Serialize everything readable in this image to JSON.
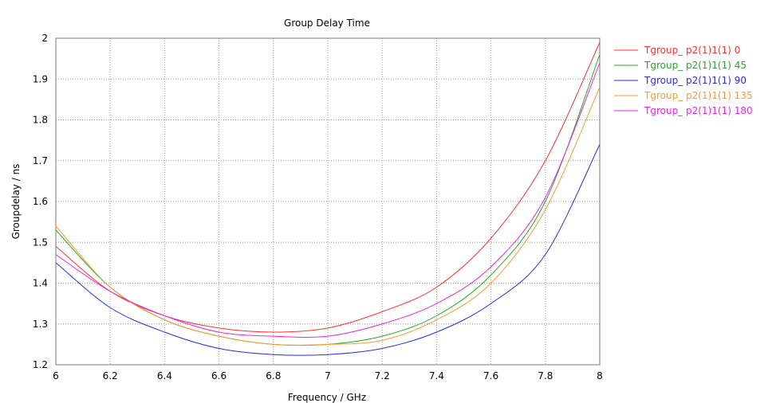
{
  "chart_data": {
    "type": "line",
    "title": "Group Delay Time",
    "xlabel": "Frequency / GHz",
    "ylabel": "Groupdelay / ns",
    "xlim": [
      6,
      8
    ],
    "ylim": [
      1.2,
      2
    ],
    "x_ticks": [
      "6",
      "6.2",
      "6.4",
      "6.6",
      "6.8",
      "7",
      "7.2",
      "7.4",
      "7.6",
      "7.8",
      "8"
    ],
    "y_ticks": [
      "1.2",
      "1.3",
      "1.4",
      "1.5",
      "1.6",
      "1.7",
      "1.8",
      "1.9",
      "2"
    ],
    "grid": true,
    "legend_position": "right",
    "x": [
      6.0,
      6.2,
      6.4,
      6.6,
      6.8,
      7.0,
      7.2,
      7.4,
      7.6,
      7.8,
      8.0
    ],
    "series": [
      {
        "name": "Tgroup_ p2(1)1(1) 0",
        "color": "#ff3030",
        "values": [
          1.49,
          1.38,
          1.32,
          1.29,
          1.28,
          1.29,
          1.33,
          1.39,
          1.51,
          1.7,
          1.99
        ]
      },
      {
        "name": "Tgroup_ p2(1)1(1) 45",
        "color": "#22aa22",
        "values": [
          1.53,
          1.39,
          1.31,
          1.27,
          1.25,
          1.25,
          1.27,
          1.32,
          1.42,
          1.6,
          1.96
        ]
      },
      {
        "name": "Tgroup_ p2(1)1(1) 90",
        "color": "#2a2aee",
        "values": [
          1.45,
          1.34,
          1.28,
          1.24,
          1.225,
          1.225,
          1.24,
          1.28,
          1.35,
          1.47,
          1.74
        ]
      },
      {
        "name": "Tgroup_ p2(1)1(1) 135",
        "color": "#ff9933",
        "values": [
          1.54,
          1.39,
          1.31,
          1.27,
          1.25,
          1.25,
          1.26,
          1.31,
          1.4,
          1.58,
          1.88
        ]
      },
      {
        "name": "Tgroup_ p2(1)1(1) 180",
        "color": "#ee22ee",
        "values": [
          1.47,
          1.38,
          1.32,
          1.28,
          1.27,
          1.27,
          1.3,
          1.35,
          1.44,
          1.61,
          1.94
        ]
      }
    ]
  }
}
